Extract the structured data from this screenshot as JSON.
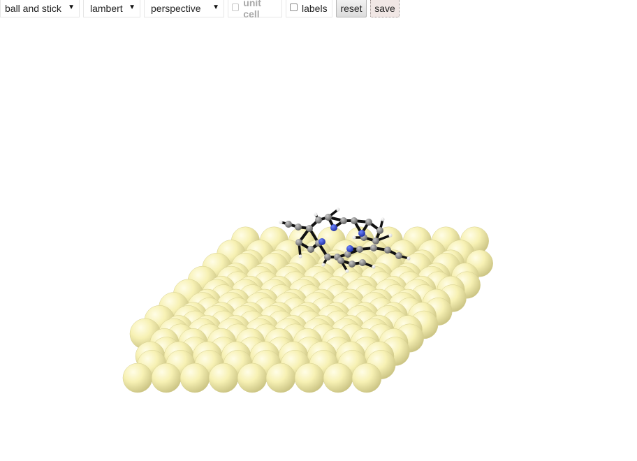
{
  "toolbar": {
    "style_select": "ball and stick",
    "shading_select": "lambert",
    "projection_select": "perspective",
    "unit_cell_label": "unit cell",
    "labels_label": "labels",
    "reset_label": "reset",
    "save_label": "save"
  },
  "colors": {
    "substrate_atom": "#f8f3b2",
    "carbon_atom": "#8c8c8c",
    "nitrogen_atom": "#2f48d8",
    "hydrogen_atom": "#ffffff",
    "bond": "#111111"
  },
  "icons": {
    "dropdown": "triangle-down-icon",
    "checkbox": "checkbox-icon"
  }
}
